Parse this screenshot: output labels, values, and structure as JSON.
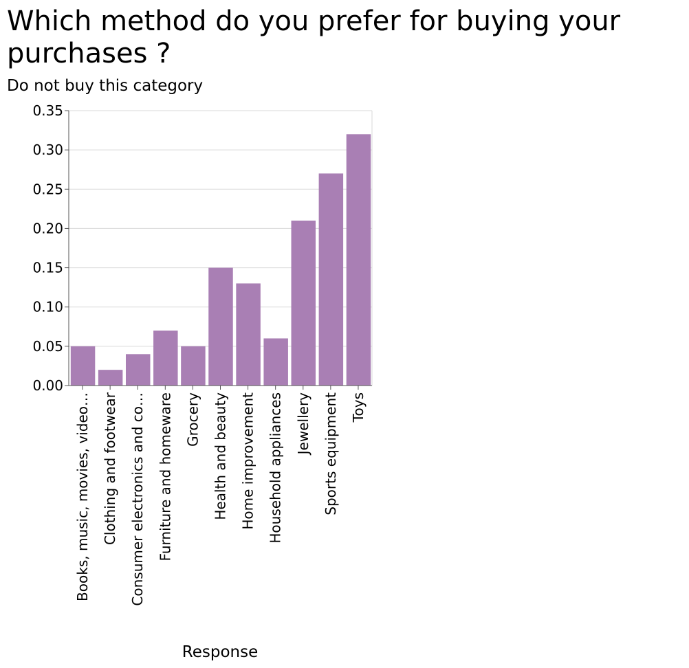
{
  "chart_data": {
    "type": "bar",
    "title": "Which method do you prefer for buying your\npurchases ?",
    "xlabel": "Response",
    "ylabel": "Do not buy this category",
    "categories": [
      "Books, music, movies, video…",
      "Clothing and footwear",
      "Consumer electronics and co…",
      "Furniture and homeware",
      "Grocery",
      "Health and beauty",
      "Home improvement",
      "Household appliances",
      "Jewellery",
      "Sports equipment",
      "Toys"
    ],
    "values": [
      0.05,
      0.02,
      0.04,
      0.07,
      0.05,
      0.15,
      0.13,
      0.06,
      0.21,
      0.27,
      0.32
    ],
    "ylim": [
      0,
      0.35
    ],
    "yticks": [
      "0.00",
      "0.05",
      "0.10",
      "0.15",
      "0.20",
      "0.25",
      "0.30",
      "0.35"
    ],
    "grid": true,
    "legend": "none",
    "bar_color": "#a97fb4"
  }
}
